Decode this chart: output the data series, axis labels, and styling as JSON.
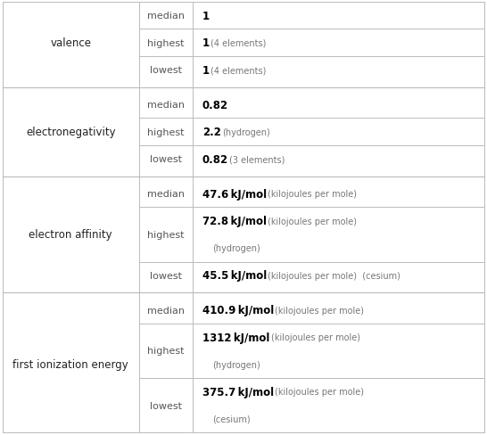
{
  "rows": [
    {
      "property": "valence",
      "subrows": [
        {
          "label": "median",
          "bold_text": "1",
          "normal_text": ""
        },
        {
          "label": "highest",
          "bold_text": "1",
          "normal_text": "  (4 elements)"
        },
        {
          "label": "lowest",
          "bold_text": "1",
          "normal_text": "  (4 elements)"
        }
      ]
    },
    {
      "property": "electronegativity",
      "subrows": [
        {
          "label": "median",
          "bold_text": "0.82",
          "normal_text": ""
        },
        {
          "label": "highest",
          "bold_text": "2.2",
          "normal_text": "  (hydrogen)"
        },
        {
          "label": "lowest",
          "bold_text": "0.82",
          "normal_text": "  (3 elements)"
        }
      ]
    },
    {
      "property": "electron affinity",
      "subrows": [
        {
          "label": "median",
          "bold_text": "47.6 kJ/mol",
          "normal_text": "  (kilojoules per mole)"
        },
        {
          "label": "highest",
          "bold_text": "72.8 kJ/mol",
          "normal_text": "  (kilojoules per mole)\n  (hydrogen)"
        },
        {
          "label": "lowest",
          "bold_text": "45.5 kJ/mol",
          "normal_text": "  (kilojoules per mole)  (cesium)"
        }
      ]
    },
    {
      "property": "first ionization energy",
      "subrows": [
        {
          "label": "median",
          "bold_text": "410.9 kJ/mol",
          "normal_text": "  (kilojoules per mole)"
        },
        {
          "label": "highest",
          "bold_text": "1312 kJ/mol",
          "normal_text": "  (kilojoules per mole)\n  (hydrogen)"
        },
        {
          "label": "lowest",
          "bold_text": "375.7 kJ/mol",
          "normal_text": "  (kilojoules per mole)\n  (cesium)"
        }
      ]
    }
  ],
  "border_color": "#bbbbbb",
  "text_color": "#222222",
  "bold_color": "#000000",
  "normal_text_color": "#777777",
  "bg_color": "#ffffff",
  "font_size": 8.5,
  "label_font_size": 8.0,
  "prop_font_size": 8.5
}
